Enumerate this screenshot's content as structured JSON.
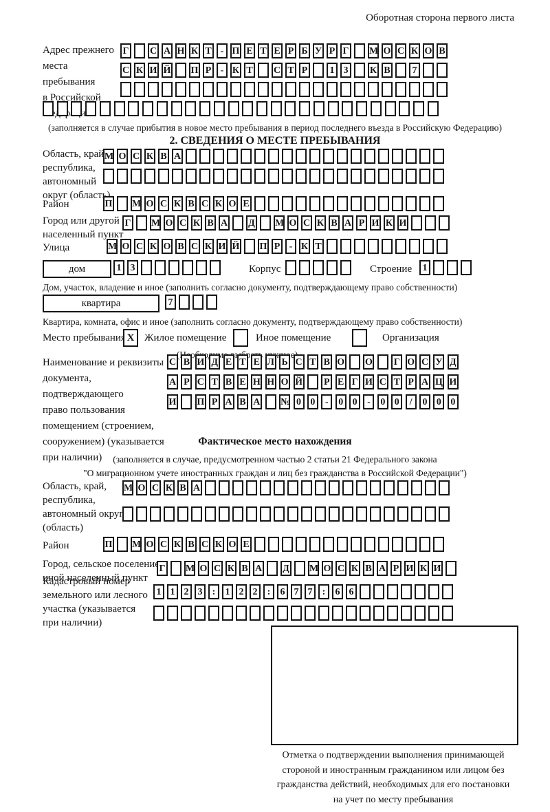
{
  "colors": {
    "ink": "#161616",
    "paper": "#ffffff"
  },
  "header": {
    "note": "Оборотная сторона первого листа"
  },
  "prev_address": {
    "label": "Адрес прежнего\nместа пребывания\nв Российской\nФедерации",
    "row1": [
      "Г",
      "",
      "С",
      "А",
      "Н",
      "К",
      "Т",
      "-",
      "П",
      "Е",
      "Т",
      "Е",
      "Р",
      "Б",
      "У",
      "Р",
      "Г",
      "",
      "М",
      "О",
      "С",
      "К",
      "О",
      "В"
    ],
    "row2": [
      "С",
      "К",
      "И",
      "Й",
      "",
      "П",
      "Р",
      "-",
      "К",
      "Т",
      "",
      "С",
      "Т",
      "Р",
      "",
      "1",
      "3",
      "",
      "К",
      "В",
      "",
      "7",
      "",
      ""
    ],
    "row3": 24,
    "row4": 28,
    "footnote": "(заполняется в случае прибытия в новое место пребывания в период последнего въезда в Российскую Федерацию)"
  },
  "section2": {
    "title": "2. СВЕДЕНИЯ О МЕСТЕ ПРЕБЫВАНИЯ",
    "region": {
      "label": "Область, край,\nреспублика,\nавтономный\nокруг (область)",
      "row1": {
        "chars": [
          "М",
          "О",
          "С",
          "К",
          "В",
          "А"
        ],
        "len": 25
      },
      "row2": 25
    },
    "district": {
      "label": "Район",
      "row": {
        "chars": [
          "П",
          "",
          "М",
          "О",
          "С",
          "К",
          "В",
          "С",
          "К",
          "О",
          "Е"
        ],
        "len": 25
      }
    },
    "city": {
      "label": "Город или другой\nнаселенный пункт",
      "row": {
        "chars": [
          "Г",
          "",
          "М",
          "О",
          "С",
          "К",
          "В",
          "А",
          "",
          "Д",
          "",
          "М",
          "О",
          "С",
          "К",
          "В",
          "А",
          "Р",
          "И",
          "К",
          "И"
        ],
        "len": 24
      }
    },
    "street": {
      "label": "Улица",
      "row": {
        "chars": [
          "М",
          "О",
          "С",
          "К",
          "О",
          "В",
          "С",
          "К",
          "И",
          "Й",
          "",
          "П",
          "Р",
          "-",
          "К",
          "Т"
        ],
        "len": 25
      }
    },
    "house": {
      "box_label": "дом",
      "cells": {
        "chars": [
          "1",
          "3"
        ],
        "len": 8
      },
      "korpus_label": "Корпус",
      "korpus_cells": 5,
      "stroenie_label": "Строение",
      "stroenie_cells": {
        "chars": [
          "1"
        ],
        "len": 4
      },
      "note": "Дом, участок, владение и иное (заполнить согласно документу, подтверждающему право собственности)"
    },
    "apartment": {
      "box_label": "квартира",
      "cells": {
        "chars": [
          "7"
        ],
        "len": 4
      },
      "note": "Квартира, комната, офис и иное (заполнить согласно документу, подтверждающему право собственности)"
    },
    "stay_type": {
      "label": "Место пребывания:",
      "options": [
        {
          "label": "Жилое помещение",
          "mark": "X"
        },
        {
          "label": "Иное помещение",
          "mark": ""
        },
        {
          "label": "Организация",
          "mark": ""
        }
      ],
      "note": "(Необходимо выбрать нужное)"
    },
    "document": {
      "label": "Наименование и реквизиты\nдокумента, подтверждающего\nправо пользования\nпомещением (строением,\nсооружением) (указывается\nпри наличии)",
      "row1": [
        "С",
        "В",
        "И",
        "Д",
        "Е",
        "Т",
        "Е",
        "Л",
        "Ь",
        "С",
        "Т",
        "В",
        "О",
        "",
        "О",
        "",
        "Г",
        "О",
        "С",
        "У",
        "Д"
      ],
      "row2": [
        "А",
        "Р",
        "С",
        "Т",
        "В",
        "Е",
        "Н",
        "Н",
        "О",
        "Й",
        "",
        "Р",
        "Е",
        "Г",
        "И",
        "С",
        "Т",
        "Р",
        "А",
        "Ц",
        "И"
      ],
      "row3": [
        "И",
        "",
        "П",
        "Р",
        "А",
        "В",
        "А",
        "",
        "№",
        "0",
        "0",
        "-",
        "0",
        "0",
        "-",
        "0",
        "0",
        "/",
        "0",
        "0",
        "0"
      ]
    }
  },
  "actual_location": {
    "title": "Фактическое место нахождения",
    "note": "(заполняется в случае, предусмотренном частью 2 статьи 21 Федерального закона\n\"О миграционном учете иностранных граждан и лиц без гражданства в Российской Федерации\")",
    "region": {
      "label": "Область, край,\nреспублика,\nавтономный округ\n(область)",
      "row1": {
        "chars": [
          "М",
          "О",
          "С",
          "К",
          "В",
          "А"
        ],
        "len": 24
      },
      "row2": 24
    },
    "district": {
      "label": "Район",
      "row": {
        "chars": [
          "П",
          "",
          "М",
          "О",
          "С",
          "К",
          "В",
          "С",
          "К",
          "О",
          "Е"
        ],
        "len": 25
      }
    },
    "city": {
      "label": "Город, сельское поселение,\nиной населенный пункт",
      "row": {
        "chars": [
          "Г",
          "",
          "М",
          "О",
          "С",
          "К",
          "В",
          "А",
          "",
          "Д",
          "",
          "М",
          "О",
          "С",
          "К",
          "В",
          "А",
          "Р",
          "И",
          "К",
          "И"
        ],
        "len": 22
      }
    },
    "cadastral": {
      "label": "Кадастровый номер\nземельного или лесного\nучастка (указывается\nпри наличии)",
      "row1": {
        "chars": [
          "1",
          "1",
          "2",
          "3",
          ":",
          "1",
          "2",
          "2",
          ":",
          "6",
          "7",
          "7",
          ":",
          "6",
          "6"
        ],
        "len": 22
      },
      "row2": 22
    },
    "stamp_note": "Отметка о подтверждении выполнения принимающей\nстороной и иностранным гражданином или лицом без\nгражданства действий, необходимых для его постановки\nна учет по месту пребывания"
  }
}
